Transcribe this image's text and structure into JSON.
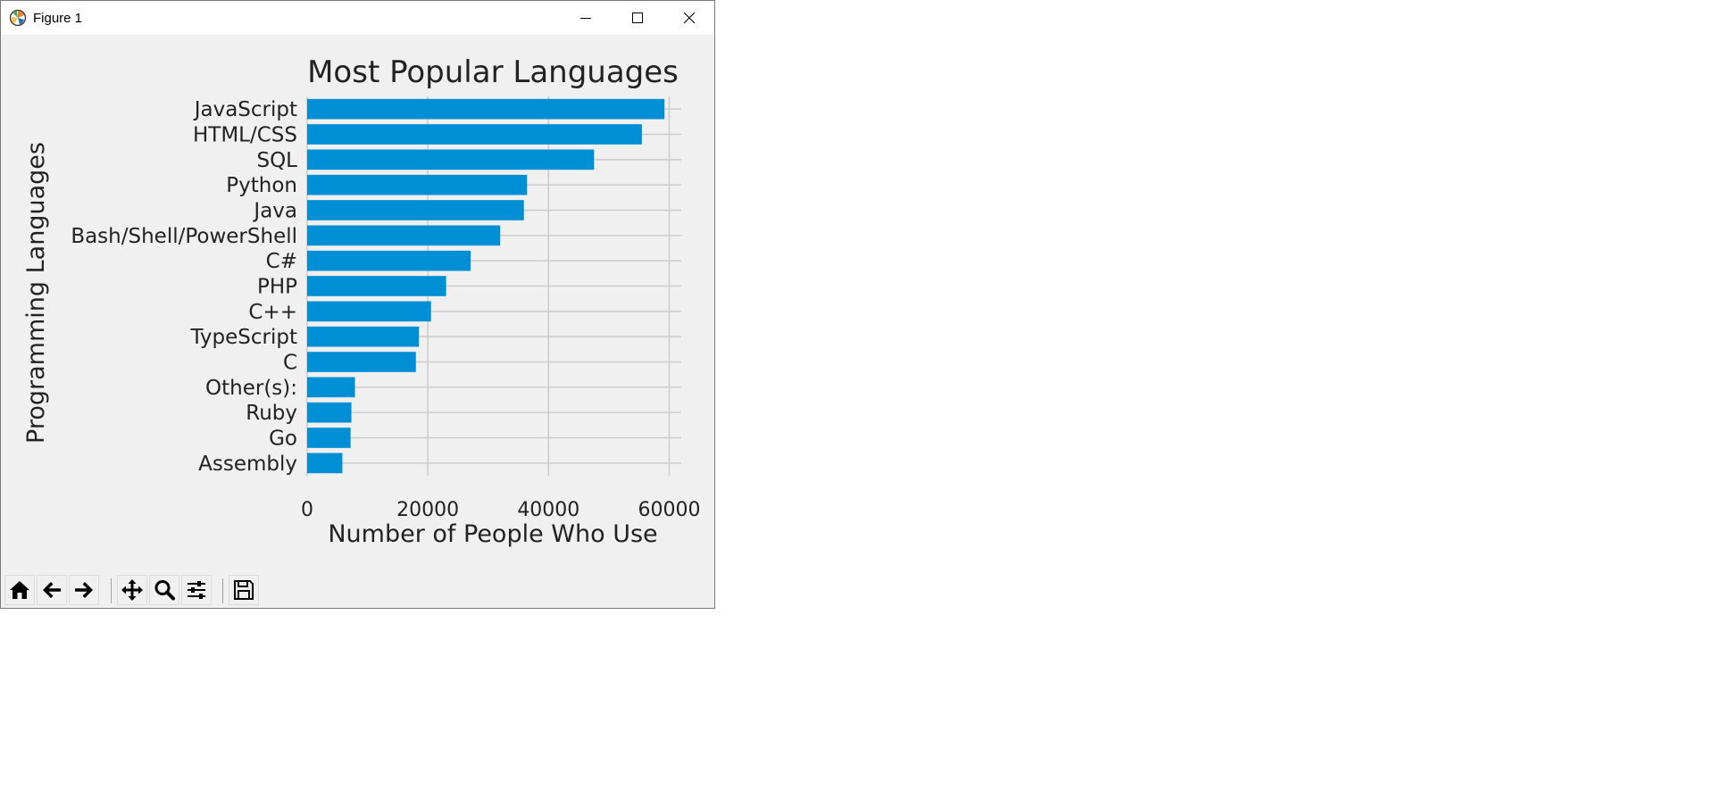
{
  "window": {
    "title": "Figure 1",
    "icons": {
      "app": "matplotlib-logo-icon",
      "minimize": "minimize-icon",
      "maximize": "maximize-icon",
      "close": "close-icon"
    }
  },
  "toolbar": {
    "buttons": [
      {
        "name": "home",
        "icon": "home-icon"
      },
      {
        "name": "back",
        "icon": "arrow-left-icon"
      },
      {
        "name": "forward",
        "icon": "arrow-right-icon"
      },
      {
        "name": "pan",
        "icon": "move-icon"
      },
      {
        "name": "zoom",
        "icon": "magnifier-icon"
      },
      {
        "name": "configure",
        "icon": "sliders-icon"
      },
      {
        "name": "save",
        "icon": "floppy-disk-icon"
      }
    ]
  },
  "chart_data": {
    "type": "bar",
    "orientation": "horizontal",
    "title": "Most Popular Languages",
    "xlabel": "Number of People Who Use",
    "ylabel": "Programming Languages",
    "categories": [
      "JavaScript",
      "HTML/CSS",
      "SQL",
      "Python",
      "Java",
      "Bash/Shell/PowerShell",
      "C#",
      "PHP",
      "C++",
      "TypeScript",
      "C",
      "Other(s):",
      "Ruby",
      "Go",
      "Assembly"
    ],
    "values": [
      59219,
      55466,
      47544,
      36443,
      35917,
      31991,
      27097,
      23030,
      20524,
      18523,
      18017,
      7920,
      7331,
      7201,
      5833
    ],
    "xlim": [
      0,
      62000
    ],
    "xticks": [
      0,
      20000,
      40000,
      60000
    ],
    "xtick_labels": [
      "0",
      "20000",
      "40000",
      "60000"
    ],
    "grid": true,
    "bar_color": "#008fd5"
  }
}
